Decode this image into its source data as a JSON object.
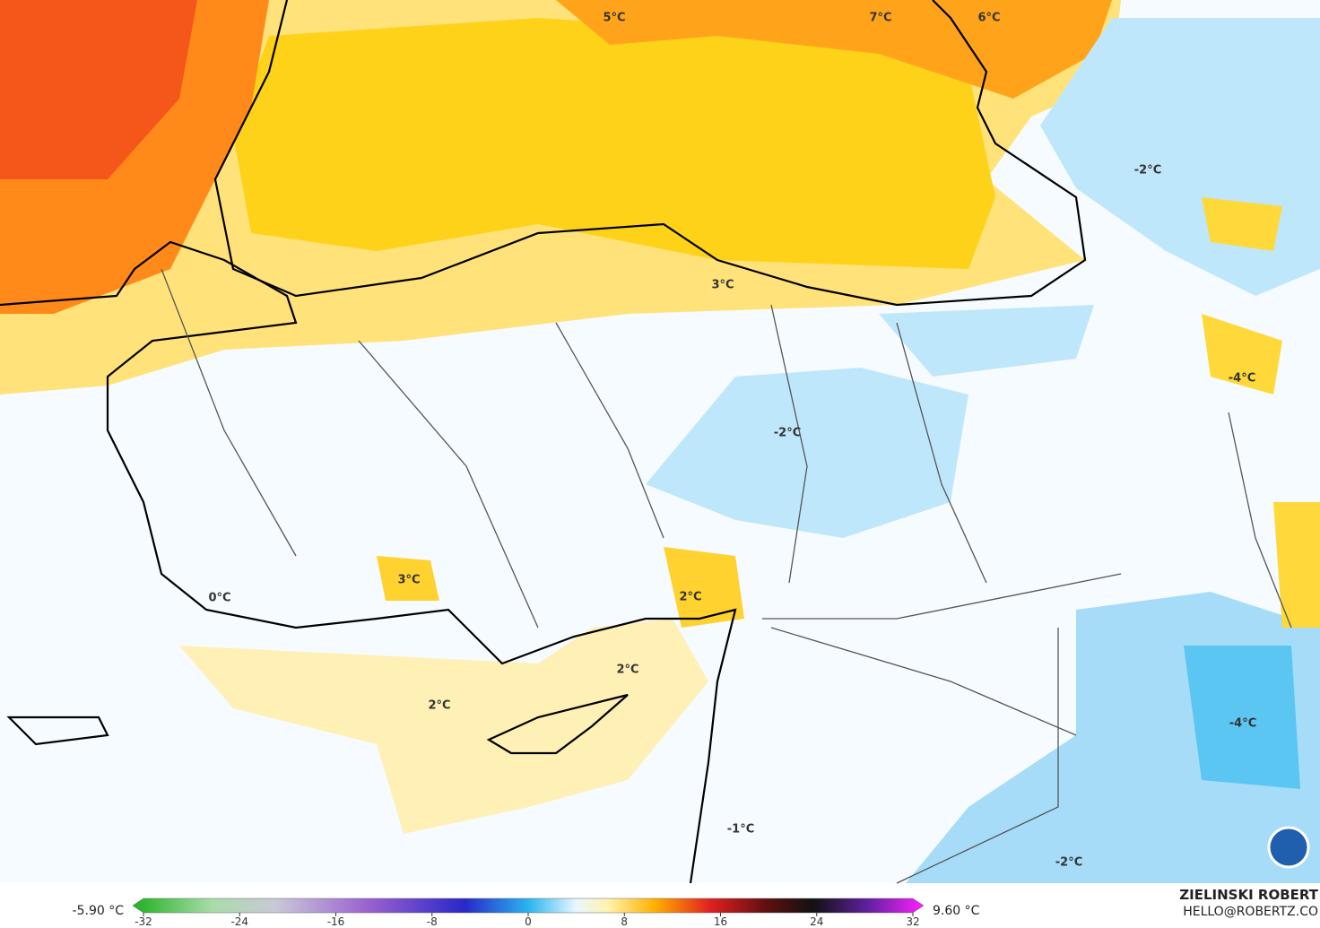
{
  "map": {
    "labels": [
      "5°C",
      "7°C",
      "6°C",
      "-2°C",
      "3°C",
      "-4°C",
      "-2°C",
      "0°C",
      "3°C",
      "2°C",
      "2°C",
      "2°C",
      "-4°C",
      "-1°C",
      "-2°C"
    ]
  },
  "legend": {
    "min_label": "-5.90 °C",
    "max_label": "9.60 °C",
    "lim": [
      -32,
      32
    ],
    "ticks": [
      -32,
      -24,
      -16,
      -8,
      0,
      8,
      16,
      24,
      32
    ]
  },
  "credit": {
    "name": "ZIELINSKI ROBERT",
    "contact": "HELLO@ROBERTZ.CO"
  }
}
